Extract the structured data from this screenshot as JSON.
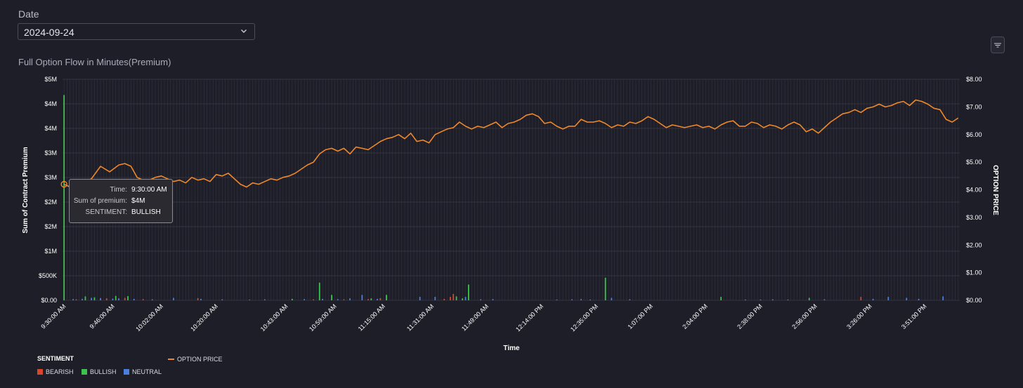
{
  "filter": {
    "date_label": "Date",
    "date_value": "2024-09-24"
  },
  "chart_title": "Full Option Flow in Minutes(Premium)",
  "colors": {
    "bearish": "#d9462b",
    "bullish": "#3ec24e",
    "neutral": "#4a7fe0",
    "option_price": "#f0882a",
    "grid": "#3a3c4a",
    "background": "#1e1e28"
  },
  "tooltip": {
    "time_key": "Time:",
    "time_value": "9:30:00 AM",
    "premium_key": "Sum of premium:",
    "premium_value": "$4M",
    "sentiment_key": "SENTIMENT:",
    "sentiment_value": "BULLISH"
  },
  "legend": {
    "title": "SENTIMENT",
    "items": [
      {
        "label": "BEARISH",
        "color": "#d9462b"
      },
      {
        "label": "BULLISH",
        "color": "#3ec24e"
      },
      {
        "label": "NEUTRAL",
        "color": "#4a7fe0"
      }
    ],
    "line_label": "OPTION PRICE"
  },
  "chart_data": {
    "type": "bar",
    "xlabel": "Time",
    "ylabel": "Sum of Contract Premium",
    "y2label": "OPTION PRICE",
    "y_ticks": [
      "$0.00",
      "$500K",
      "$1M",
      "$2M",
      "$2M",
      "$3M",
      "$3M",
      "$4M",
      "$4M",
      "$5M"
    ],
    "ylim": [
      0,
      4500000
    ],
    "y2_ticks": [
      "$0.00",
      "$1.00",
      "$2.00",
      "$3.00",
      "$4.00",
      "$5.00",
      "$6.00",
      "$7.00",
      "$8.00"
    ],
    "y2lim": [
      0,
      8
    ],
    "x_tick_labels": [
      {
        "i": 0,
        "label": "9:30:00 AM"
      },
      {
        "i": 16,
        "label": "9:46:00 AM"
      },
      {
        "i": 32,
        "label": "10:02:00 AM"
      },
      {
        "i": 50,
        "label": "10:20:00 AM"
      },
      {
        "i": 73,
        "label": "10:43:00 AM"
      },
      {
        "i": 89,
        "label": "10:59:00 AM"
      },
      {
        "i": 105,
        "label": "11:15:00 AM"
      },
      {
        "i": 121,
        "label": "11:31:00 AM"
      },
      {
        "i": 139,
        "label": "11:49:00 AM"
      },
      {
        "i": 157,
        "label": "12:14:00 PM"
      },
      {
        "i": 175,
        "label": "12:35:00 PM"
      },
      {
        "i": 193,
        "label": "1:07:00 PM"
      },
      {
        "i": 211,
        "label": "2:04:00 PM"
      },
      {
        "i": 229,
        "label": "2:38:00 PM"
      },
      {
        "i": 247,
        "label": "2:56:00 PM"
      },
      {
        "i": 265,
        "label": "3:26:00 PM"
      },
      {
        "i": 283,
        "label": "3:51:00 PM"
      }
    ],
    "n_slots": 295,
    "bars": [
      {
        "i": 0,
        "sentiment": "BULLISH",
        "value": 4180000
      },
      {
        "i": 3,
        "sentiment": "NEUTRAL",
        "value": 25000
      },
      {
        "i": 4,
        "sentiment": "BEARISH",
        "value": 20000
      },
      {
        "i": 6,
        "sentiment": "NEUTRAL",
        "value": 30000
      },
      {
        "i": 7,
        "sentiment": "BULLISH",
        "value": 80000
      },
      {
        "i": 9,
        "sentiment": "NEUTRAL",
        "value": 50000
      },
      {
        "i": 10,
        "sentiment": "BULLISH",
        "value": 60000
      },
      {
        "i": 12,
        "sentiment": "NEUTRAL",
        "value": 45000
      },
      {
        "i": 14,
        "sentiment": "BEARISH",
        "value": 40000
      },
      {
        "i": 16,
        "sentiment": "NEUTRAL",
        "value": 35000
      },
      {
        "i": 17,
        "sentiment": "BULLISH",
        "value": 90000
      },
      {
        "i": 18,
        "sentiment": "NEUTRAL",
        "value": 40000
      },
      {
        "i": 20,
        "sentiment": "BEARISH",
        "value": 50000
      },
      {
        "i": 21,
        "sentiment": "BULLISH",
        "value": 85000
      },
      {
        "i": 23,
        "sentiment": "NEUTRAL",
        "value": 30000
      },
      {
        "i": 26,
        "sentiment": "BEARISH",
        "value": 25000
      },
      {
        "i": 29,
        "sentiment": "NEUTRAL",
        "value": 20000
      },
      {
        "i": 36,
        "sentiment": "NEUTRAL",
        "value": 50000
      },
      {
        "i": 44,
        "sentiment": "BEARISH",
        "value": 45000
      },
      {
        "i": 45,
        "sentiment": "NEUTRAL",
        "value": 30000
      },
      {
        "i": 52,
        "sentiment": "NEUTRAL",
        "value": 20000
      },
      {
        "i": 61,
        "sentiment": "BEARISH",
        "value": 15000
      },
      {
        "i": 66,
        "sentiment": "NEUTRAL",
        "value": 20000
      },
      {
        "i": 75,
        "sentiment": "BULLISH",
        "value": 30000
      },
      {
        "i": 79,
        "sentiment": "NEUTRAL",
        "value": 25000
      },
      {
        "i": 82,
        "sentiment": "BEARISH",
        "value": 20000
      },
      {
        "i": 84,
        "sentiment": "BULLISH",
        "value": 360000
      },
      {
        "i": 85,
        "sentiment": "NEUTRAL",
        "value": 30000
      },
      {
        "i": 88,
        "sentiment": "BULLISH",
        "value": 110000
      },
      {
        "i": 90,
        "sentiment": "NEUTRAL",
        "value": 25000
      },
      {
        "i": 92,
        "sentiment": "BEARISH",
        "value": 20000
      },
      {
        "i": 94,
        "sentiment": "NEUTRAL",
        "value": 40000
      },
      {
        "i": 98,
        "sentiment": "NEUTRAL",
        "value": 110000
      },
      {
        "i": 100,
        "sentiment": "BEARISH",
        "value": 25000
      },
      {
        "i": 101,
        "sentiment": "BULLISH",
        "value": 40000
      },
      {
        "i": 103,
        "sentiment": "NEUTRAL",
        "value": 30000
      },
      {
        "i": 104,
        "sentiment": "BEARISH",
        "value": 45000
      },
      {
        "i": 106,
        "sentiment": "BULLISH",
        "value": 110000
      },
      {
        "i": 117,
        "sentiment": "NEUTRAL",
        "value": 70000
      },
      {
        "i": 122,
        "sentiment": "NEUTRAL",
        "value": 70000
      },
      {
        "i": 125,
        "sentiment": "BEARISH",
        "value": 30000
      },
      {
        "i": 127,
        "sentiment": "BEARISH",
        "value": 70000
      },
      {
        "i": 128,
        "sentiment": "BEARISH",
        "value": 130000
      },
      {
        "i": 129,
        "sentiment": "BULLISH",
        "value": 80000
      },
      {
        "i": 131,
        "sentiment": "BULLISH",
        "value": 40000
      },
      {
        "i": 132,
        "sentiment": "NEUTRAL",
        "value": 70000
      },
      {
        "i": 133,
        "sentiment": "BULLISH",
        "value": 320000
      },
      {
        "i": 137,
        "sentiment": "NEUTRAL",
        "value": 20000
      },
      {
        "i": 141,
        "sentiment": "NEUTRAL",
        "value": 25000
      },
      {
        "i": 162,
        "sentiment": "NEUTRAL",
        "value": 15000
      },
      {
        "i": 167,
        "sentiment": "NEUTRAL",
        "value": 20000
      },
      {
        "i": 170,
        "sentiment": "NEUTRAL",
        "value": 25000
      },
      {
        "i": 173,
        "sentiment": "NEUTRAL",
        "value": 15000
      },
      {
        "i": 178,
        "sentiment": "BULLISH",
        "value": 460000
      },
      {
        "i": 180,
        "sentiment": "NEUTRAL",
        "value": 50000
      },
      {
        "i": 186,
        "sentiment": "NEUTRAL",
        "value": 20000
      },
      {
        "i": 216,
        "sentiment": "BULLISH",
        "value": 70000
      },
      {
        "i": 224,
        "sentiment": "NEUTRAL",
        "value": 15000
      },
      {
        "i": 229,
        "sentiment": "NEUTRAL",
        "value": 15000
      },
      {
        "i": 233,
        "sentiment": "NEUTRAL",
        "value": 20000
      },
      {
        "i": 238,
        "sentiment": "NEUTRAL",
        "value": 15000
      },
      {
        "i": 245,
        "sentiment": "BULLISH",
        "value": 50000
      },
      {
        "i": 250,
        "sentiment": "NEUTRAL",
        "value": 20000
      },
      {
        "i": 262,
        "sentiment": "BEARISH",
        "value": 70000
      },
      {
        "i": 266,
        "sentiment": "NEUTRAL",
        "value": 30000
      },
      {
        "i": 271,
        "sentiment": "NEUTRAL",
        "value": 70000
      },
      {
        "i": 277,
        "sentiment": "NEUTRAL",
        "value": 50000
      },
      {
        "i": 281,
        "sentiment": "NEUTRAL",
        "value": 30000
      },
      {
        "i": 289,
        "sentiment": "NEUTRAL",
        "value": 80000
      }
    ],
    "line": {
      "name": "OPTION PRICE",
      "points": [
        [
          0,
          4.2
        ],
        [
          3,
          4.05
        ],
        [
          6,
          4.25
        ],
        [
          9,
          4.4
        ],
        [
          12,
          4.85
        ],
        [
          15,
          4.65
        ],
        [
          18,
          4.9
        ],
        [
          20,
          4.95
        ],
        [
          22,
          4.85
        ],
        [
          24,
          4.45
        ],
        [
          26,
          4.35
        ],
        [
          28,
          4.35
        ],
        [
          30,
          4.45
        ],
        [
          32,
          4.5
        ],
        [
          34,
          4.4
        ],
        [
          36,
          4.3
        ],
        [
          38,
          4.35
        ],
        [
          40,
          4.25
        ],
        [
          42,
          4.45
        ],
        [
          44,
          4.35
        ],
        [
          46,
          4.4
        ],
        [
          48,
          4.3
        ],
        [
          50,
          4.55
        ],
        [
          52,
          4.5
        ],
        [
          54,
          4.6
        ],
        [
          56,
          4.4
        ],
        [
          58,
          4.2
        ],
        [
          60,
          4.1
        ],
        [
          62,
          4.25
        ],
        [
          64,
          4.2
        ],
        [
          66,
          4.3
        ],
        [
          68,
          4.4
        ],
        [
          70,
          4.35
        ],
        [
          72,
          4.45
        ],
        [
          74,
          4.5
        ],
        [
          76,
          4.6
        ],
        [
          78,
          4.75
        ],
        [
          80,
          4.9
        ],
        [
          82,
          5.0
        ],
        [
          84,
          5.3
        ],
        [
          86,
          5.45
        ],
        [
          88,
          5.5
        ],
        [
          90,
          5.4
        ],
        [
          92,
          5.5
        ],
        [
          94,
          5.3
        ],
        [
          96,
          5.55
        ],
        [
          98,
          5.5
        ],
        [
          100,
          5.45
        ],
        [
          102,
          5.6
        ],
        [
          104,
          5.75
        ],
        [
          106,
          5.85
        ],
        [
          108,
          5.9
        ],
        [
          110,
          6.0
        ],
        [
          112,
          5.85
        ],
        [
          114,
          6.05
        ],
        [
          116,
          5.75
        ],
        [
          118,
          5.8
        ],
        [
          120,
          5.7
        ],
        [
          122,
          6.0
        ],
        [
          124,
          6.1
        ],
        [
          126,
          6.2
        ],
        [
          128,
          6.25
        ],
        [
          130,
          6.45
        ],
        [
          132,
          6.3
        ],
        [
          134,
          6.2
        ],
        [
          136,
          6.3
        ],
        [
          138,
          6.25
        ],
        [
          140,
          6.35
        ],
        [
          142,
          6.45
        ],
        [
          144,
          6.25
        ],
        [
          146,
          6.4
        ],
        [
          148,
          6.45
        ],
        [
          150,
          6.55
        ],
        [
          152,
          6.7
        ],
        [
          154,
          6.75
        ],
        [
          156,
          6.65
        ],
        [
          158,
          6.4
        ],
        [
          160,
          6.45
        ],
        [
          162,
          6.3
        ],
        [
          164,
          6.2
        ],
        [
          166,
          6.3
        ],
        [
          168,
          6.3
        ],
        [
          170,
          6.55
        ],
        [
          172,
          6.45
        ],
        [
          174,
          6.45
        ],
        [
          176,
          6.5
        ],
        [
          178,
          6.4
        ],
        [
          180,
          6.25
        ],
        [
          182,
          6.35
        ],
        [
          184,
          6.3
        ],
        [
          186,
          6.45
        ],
        [
          188,
          6.4
        ],
        [
          190,
          6.5
        ],
        [
          192,
          6.65
        ],
        [
          194,
          6.55
        ],
        [
          196,
          6.4
        ],
        [
          198,
          6.25
        ],
        [
          200,
          6.35
        ],
        [
          202,
          6.3
        ],
        [
          204,
          6.25
        ],
        [
          206,
          6.3
        ],
        [
          208,
          6.35
        ],
        [
          210,
          6.25
        ],
        [
          212,
          6.3
        ],
        [
          214,
          6.2
        ],
        [
          216,
          6.35
        ],
        [
          218,
          6.45
        ],
        [
          220,
          6.5
        ],
        [
          222,
          6.3
        ],
        [
          224,
          6.3
        ],
        [
          226,
          6.45
        ],
        [
          228,
          6.4
        ],
        [
          230,
          6.25
        ],
        [
          232,
          6.35
        ],
        [
          234,
          6.3
        ],
        [
          236,
          6.2
        ],
        [
          238,
          6.35
        ],
        [
          240,
          6.45
        ],
        [
          242,
          6.35
        ],
        [
          244,
          6.1
        ],
        [
          246,
          6.2
        ],
        [
          248,
          6.05
        ],
        [
          250,
          6.25
        ],
        [
          252,
          6.45
        ],
        [
          254,
          6.6
        ],
        [
          256,
          6.75
        ],
        [
          258,
          6.8
        ],
        [
          260,
          6.9
        ],
        [
          262,
          6.8
        ],
        [
          264,
          6.95
        ],
        [
          266,
          7.0
        ],
        [
          268,
          7.1
        ],
        [
          270,
          7.0
        ],
        [
          272,
          7.05
        ],
        [
          274,
          7.15
        ],
        [
          276,
          7.2
        ],
        [
          278,
          7.05
        ],
        [
          280,
          7.25
        ],
        [
          282,
          7.2
        ],
        [
          284,
          7.1
        ],
        [
          286,
          6.95
        ],
        [
          288,
          6.9
        ],
        [
          290,
          6.55
        ],
        [
          292,
          6.45
        ],
        [
          294,
          6.6
        ]
      ]
    },
    "grid": true,
    "legend_position": "bottom-left"
  }
}
